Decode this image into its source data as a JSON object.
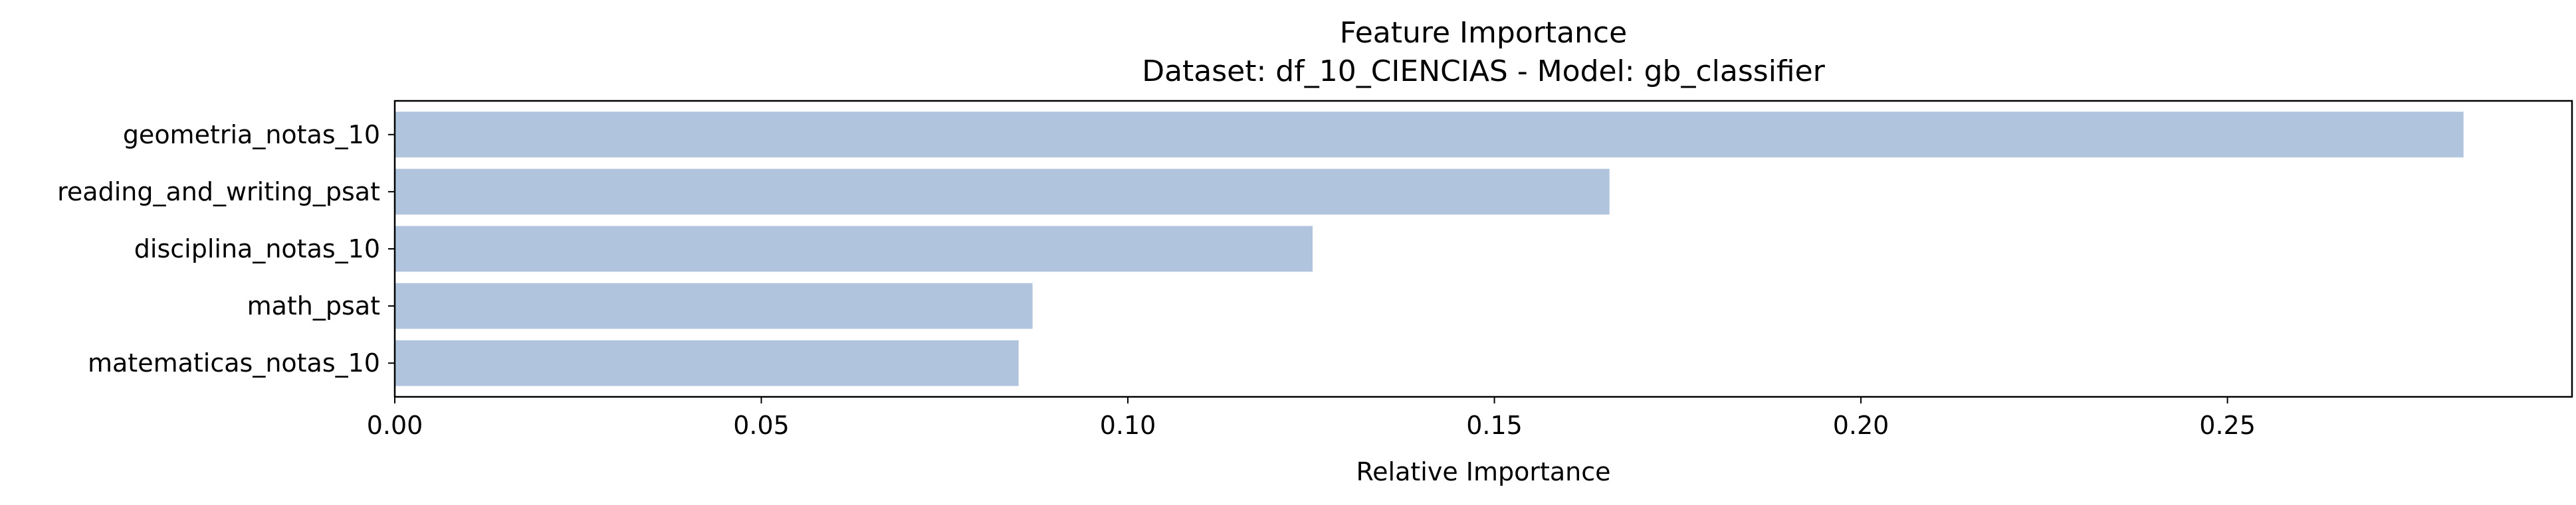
{
  "chart_data": {
    "type": "bar",
    "orientation": "horizontal",
    "title": "Feature Importance",
    "subtitle": "Dataset: df_10_CIENCIAS  -  Model: gb_classifier",
    "xlabel": "Relative Importance",
    "ylabel": "",
    "categories": [
      "geometria_notas_10",
      "reading_and_writing_psat",
      "disciplina_notas_10",
      "math_psat",
      "matematicas_notas_10"
    ],
    "values": [
      0.2822,
      0.1657,
      0.1252,
      0.087,
      0.0851
    ],
    "xlim": [
      0,
      0.297
    ],
    "xticks": [
      "0.00",
      "0.05",
      "0.10",
      "0.15",
      "0.20",
      "0.25"
    ],
    "xtick_values": [
      0,
      0.05,
      0.1,
      0.15,
      0.2,
      0.25
    ],
    "bar_color": "#b0c4de",
    "grid": false,
    "legend": "none"
  }
}
